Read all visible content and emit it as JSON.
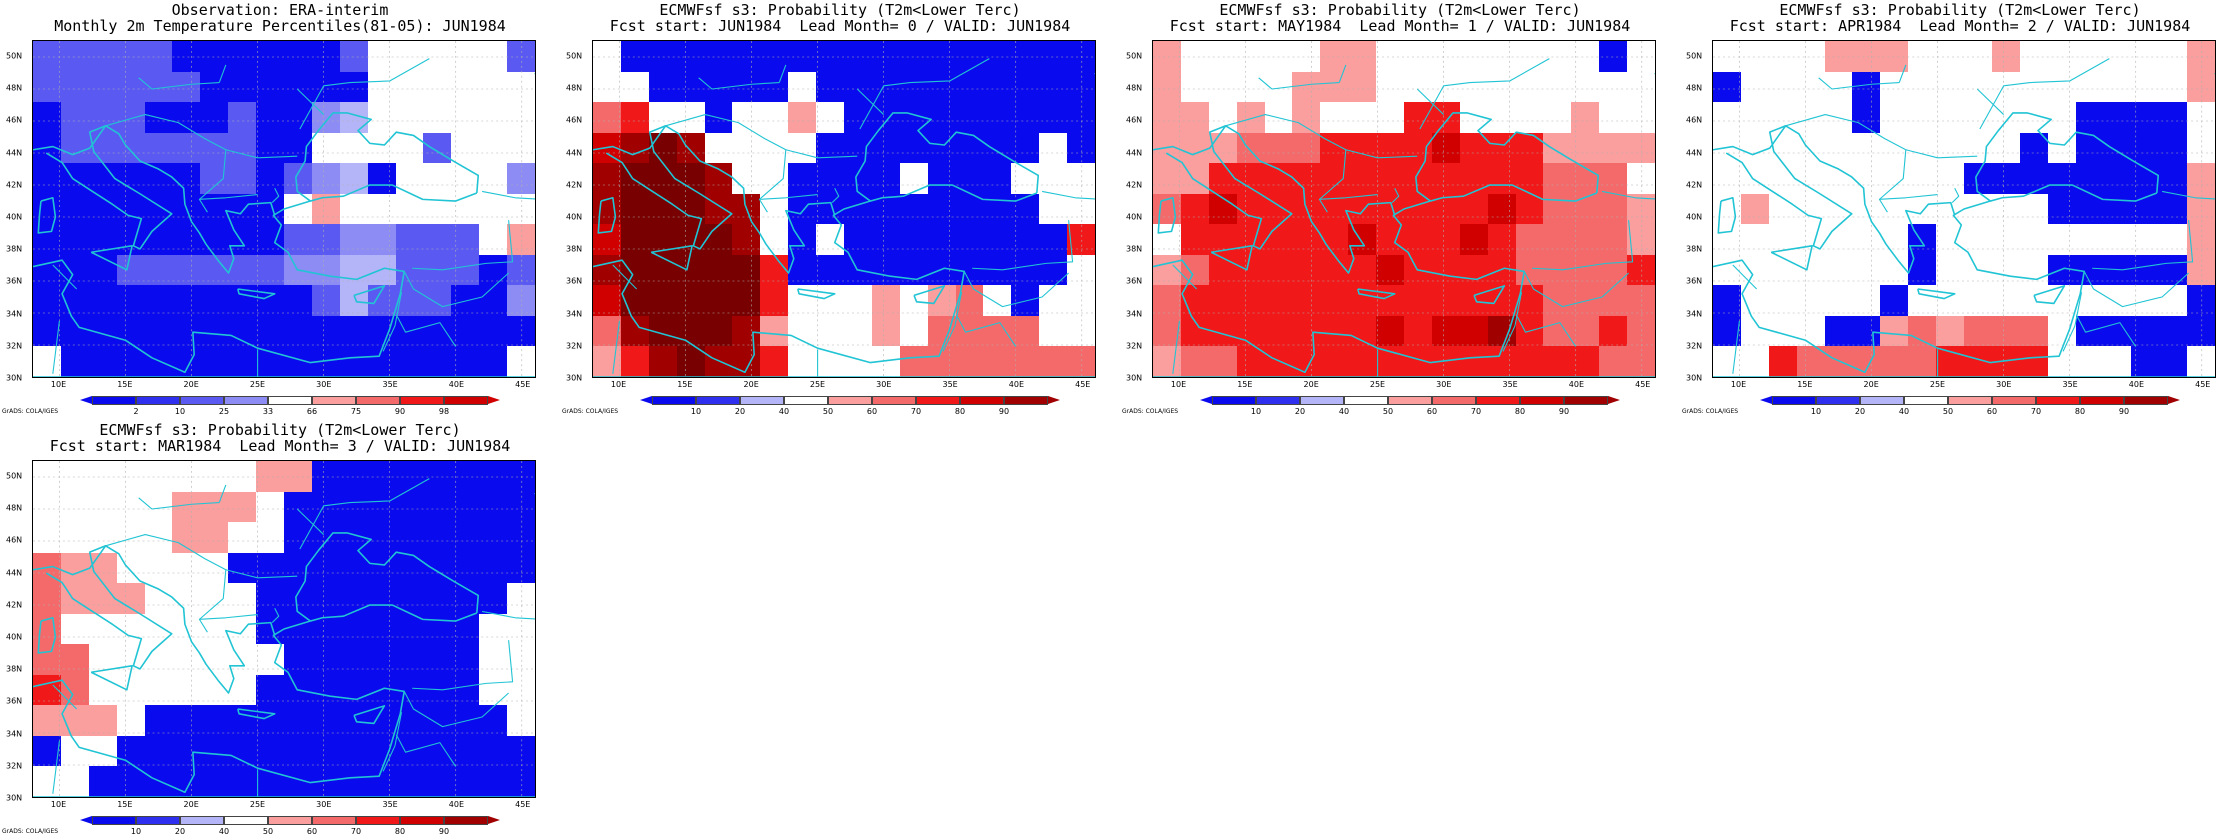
{
  "colors": {
    "white": "#ffffff",
    "b4": "#0a0aee",
    "b3": "#2f2ff0",
    "b2": "#5a5af2",
    "b1": "#8c8cf4",
    "b0": "#b4b4f8",
    "r1": "#fa9e9e",
    "r2": "#f46a6a",
    "r3": "#f01818",
    "r4": "#d00000",
    "r5": "#a00000",
    "r6": "#780000",
    "coast": "#21c4d4",
    "grid": "#b0b0b0"
  },
  "axes": {
    "lat_labels": [
      "50N",
      "48N",
      "46N",
      "44N",
      "42N",
      "40N",
      "38N",
      "36N",
      "34N",
      "32N",
      "30N"
    ],
    "lon_labels": [
      "10E",
      "15E",
      "20E",
      "25E",
      "30E",
      "35E",
      "40E",
      "45E"
    ],
    "lon_range": [
      8,
      46
    ],
    "lat_range": [
      30,
      51
    ]
  },
  "credit": "GrADS: COLA/IGES",
  "panels": [
    {
      "title1": "Observation: ERA-interim",
      "title2": "Monthly 2m Temperature Percentiles(81-05): JUN1984",
      "legend": {
        "ticks": [
          "2",
          "10",
          "25",
          "33",
          "66",
          "75",
          "90",
          "98"
        ],
        "colors": [
          "b4",
          "b3",
          "b2",
          "b1",
          "white",
          "r1",
          "r2",
          "r3",
          "r4"
        ]
      },
      "grid": [
        "b2 b2 b2 b2 b2 b4 b4 b4 b4 b4 b4 b2 w w w w w b2",
        "b2 b2 b2 b2 b2 b2 b4 b4 b4 b4 b4 b4 w w w w w w",
        "b4 b2 b2 b2 b4 b4 b4 b2 b4 b4 b1 b0 w w w w w w",
        "b4 b2 b2 b2 b2 b2 b2 b2 b4 b4 w w w w b2 w w w",
        "b4 b4 b4 b4 b4 b4 b2 b2 b4 b2 b1 b0 b4 w w w w b1",
        "b4 b4 b4 b4 b4 b4 b4 b4 b4 w r1 w w w w w w w",
        "b4 b4 b4 b4 b4 b4 b4 b4 b4 b2 b2 b1 b1 b2 b2 b2 w r1",
        "b4 b4 b4 b2 b2 b2 b2 b2 b2 b1 b1 b0 b0 b2 b2 b2 b4 b2",
        "b4 b4 b4 b4 b4 b4 b4 b4 b4 b4 b2 b0 b2 b2 b2 b4 b4 b1",
        "b4 b4 b4 b4 b4 b4 b4 b4 b4 b4 b4 b4 b4 b4 b4 b4 b4 b4",
        "w b4 b4 b4 b4 b4 b4 b4 b4 b4 b4 b4 b4 b4 b4 b4 b4 w"
      ]
    },
    {
      "title1": "ECMWFsf s3: Probability (T2m<Lower Terc)",
      "title2": "Fcst start: JUN1984  Lead Month= 0 / VALID: JUN1984",
      "legend": {
        "ticks": [
          "10",
          "20",
          "40",
          "50",
          "60",
          "70",
          "80",
          "90"
        ],
        "colors": [
          "b4",
          "b3",
          "b0",
          "white",
          "r1",
          "r2",
          "r3",
          "r4",
          "r5"
        ]
      },
      "grid": [
        "w b4 b4 b4 b4 b4 b4 b4 b4 b4 b4 b4 b4 b4 b4 b4 b4 b4",
        "w w b4 b4 b4 b4 b4 w b4 b4 b4 b4 b4 b4 b4 b4 b4 b4",
        "r2 r3 w w b4 w w r1 w b4 b4 b4 b4 b4 b4 b4 b4 b4",
        "r4 r5 r6 r5 w w w w b4 b4 b4 b4 b4 b4 b4 b4 w b4",
        "r5 r6 r6 r6 r5 w w b4 b4 b4 b4 w b4 b4 b4 w w w",
        "r5 r6 r6 r6 r5 r5 w b4 b4 b4 b4 b4 b4 b4 b4 b4 w w",
        "r4 r6 r6 r6 r6 r5 w b4 w b4 b4 b4 b4 b4 b4 b4 b4 r3",
        "r5 r6 r6 r6 r6 r6 r3 b4 b4 b4 b4 b4 b4 b4 b4 b4 b4 w",
        "r4 r6 r6 r6 r6 r6 r3 w w w r1 w r1 r2 w b4 w w",
        "r2 r5 r6 r6 r6 r5 r1 w w w r1 w r2 r2 r2 r2 w w",
        "r1 r3 r5 r6 r5 r5 r3 w w w w r2 r2 r2 r2 r2 r2 r2"
      ]
    },
    {
      "title1": "ECMWFsf s3: Probability (T2m<Lower Terc)",
      "title2": "Fcst start: MAY1984  Lead Month= 1 / VALID: JUN1984",
      "legend": {
        "ticks": [
          "10",
          "20",
          "40",
          "50",
          "60",
          "70",
          "80",
          "90"
        ],
        "colors": [
          "b4",
          "b3",
          "b0",
          "white",
          "r1",
          "r2",
          "r3",
          "r4",
          "r5"
        ]
      },
      "grid": [
        "r1 w w w w w r1 r1 w w w w w w w w b4 w",
        "r1 w w w w r1 r1 r1 w w w w w w w w w w",
        "r1 r1 w r1 w r1 w w w r3 r3 w w w w r1 w w",
        "r1 r1 r1 r2 r2 r2 r3 r3 r3 r3 r4 r3 r3 r3 r1 r1 r1 r1",
        "r1 r1 r3 r3 r3 r3 r3 r3 r3 r3 r3 r3 r3 r3 r2 r2 r2 w",
        "r2 r3 r4 r3 r3 r3 r3 r3 r3 r3 r3 r3 r4 r3 r2 r2 r2 r1",
        "w r3 r3 r3 r3 r3 r3 r4 r3 r3 r3 r4 r3 r2 r2 r2 r2 r1",
        "r1 r2 r3 r3 r3 r3 r3 r3 r4 r3 r3 r3 r3 r2 r2 r2 r2 r3",
        "r2 r3 r3 r3 r3 r3 r3 r3 r3 r3 r3 r3 r3 r3 r2 r2 r2 r2",
        "r2 r3 r3 r3 r3 r3 r3 r3 r4 r3 r4 r4 r5 r3 r2 r2 r3 r2",
        "r1 r2 r2 r3 r3 r3 r3 r3 r3 r3 r3 r3 r3 r3 r3 r3 r2 r2"
      ]
    },
    {
      "title1": "ECMWFsf s3: Probability (T2m<Lower Terc)",
      "title2": "Fcst start: APR1984  Lead Month= 2 / VALID: JUN1984",
      "legend": {
        "ticks": [
          "10",
          "20",
          "40",
          "50",
          "60",
          "70",
          "80",
          "90"
        ],
        "colors": [
          "b4",
          "b3",
          "b0",
          "white",
          "r1",
          "r2",
          "r3",
          "r4",
          "r5"
        ]
      },
      "grid": [
        "w w w w r1 r1 r1 w w w r1 w w w w w w r1",
        "b4 w w w w b4 w w w w w w w w w w w r1",
        "w w w w w b4 w w w w w w w b4 b4 b4 b4 w",
        "w w w w w w w w w w w b4 w b4 b4 b4 b4 w",
        "w w w w w w w w w b4 b4 b4 b4 b4 b4 b4 b4 r1",
        "w r1 w w w w w w w w w w b4 b4 b4 b4 b4 r1",
        "w w w w w w w b4 w w w w w w w w w r1",
        "w w w w w w w b4 w w w w b4 b4 b4 b4 b4 r1",
        "b4 w w w w w b4 w w w w w w w w w w b4",
        "b4 w w w b4 b4 r1 r2 r1 r2 r2 r2 w b4 b4 b4 b4 b4",
        "w w r3 r2 r2 r2 r2 r2 r3 r3 r3 r3 w w w b4 b4 w"
      ]
    },
    {
      "title1": "ECMWFsf s3: Probability (T2m<Lower Terc)",
      "title2": "Fcst start: MAR1984  Lead Month= 3 / VALID: JUN1984",
      "legend": {
        "ticks": [
          "10",
          "20",
          "40",
          "50",
          "60",
          "70",
          "80",
          "90"
        ],
        "colors": [
          "b4",
          "b3",
          "b0",
          "white",
          "r1",
          "r2",
          "r3",
          "r4",
          "r5"
        ]
      },
      "grid": [
        "w w w w w w w w r1 r1 b4 b4 b4 b4 b4 b4 b4 b4",
        "w w w w w r1 r1 r1 w b4 b4 b4 b4 b4 b4 b4 b4 b4",
        "w w w w w r1 r1 w w b4 b4 b4 b4 b4 b4 b4 b4 b4",
        "r2 r1 r1 w w w w b4 b4 b4 b4 b4 b4 b4 b4 b4 b4 b4",
        "r2 r1 r1 r1 w w w w b4 b4 b4 b4 b4 b4 b4 b4 b4 w",
        "r2 w w w w w w w b4 b4 b4 b4 b4 b4 b4 b4 w w",
        "r2 r2 w w w w w w w b4 b4 b4 b4 b4 b4 b4 w w",
        "r3 r2 w w w w w w b4 b4 b4 b4 b4 b4 b4 b4 w w",
        "r1 r1 r1 w b4 b4 b4 b4 b4 b4 b4 b4 b4 b4 b4 b4 b4 w",
        "b4 w w b4 b4 b4 b4 b4 b4 b4 b4 b4 b4 b4 b4 b4 b4 b4",
        "w w b4 b4 b4 b4 b4 b4 b4 b4 b4 b4 b4 b4 b4 b4 b4 b4"
      ]
    }
  ]
}
